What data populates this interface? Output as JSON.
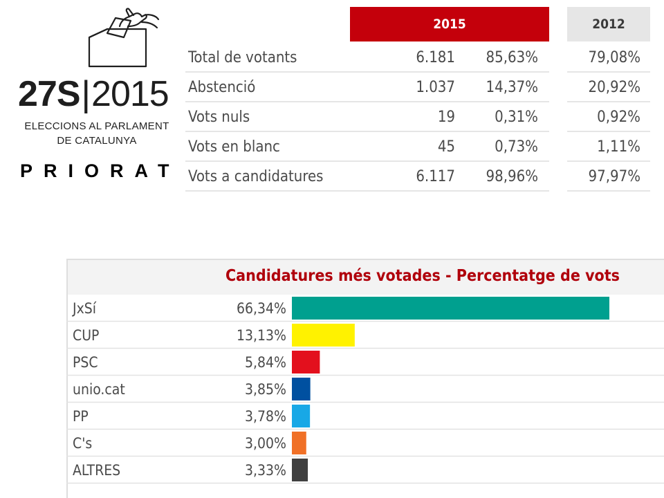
{
  "logo": {
    "date_code": "27S",
    "separator": "|",
    "year": "2015",
    "subtitle_line1": "ELECCIONS AL PARLAMENT",
    "subtitle_line2": "DE CATALUNYA",
    "icon": "ballot-box-hand-icon"
  },
  "region": "PRIORAT",
  "turnout": {
    "header_2015": "2015",
    "header_2012": "2012",
    "header_2015_color": "#c4000b",
    "header_2012_color": "#e6e6e6",
    "rows": [
      {
        "label": "Total de votants",
        "count": "6.181",
        "pct_2015": "85,63%",
        "pct_2012": "79,08%"
      },
      {
        "label": "Abstenció",
        "count": "1.037",
        "pct_2015": "14,37%",
        "pct_2012": "20,92%"
      },
      {
        "label": "Vots nuls",
        "count": "19",
        "pct_2015": "0,31%",
        "pct_2012": "0,92%"
      },
      {
        "label": "Vots en blanc",
        "count": "45",
        "pct_2015": "0,73%",
        "pct_2012": "1,11%"
      },
      {
        "label": "Vots a candidatures",
        "count": "6.117",
        "pct_2015": "98,96%",
        "pct_2012": "97,97%"
      }
    ]
  },
  "chart_data": {
    "type": "bar",
    "orientation": "horizontal",
    "title": "Candidatures més votades - Percentatge de vots",
    "categories": [
      "JxSí",
      "CUP",
      "PSC",
      "unio.cat",
      "PP",
      "C's",
      "ALTRES"
    ],
    "values": [
      66.34,
      13.13,
      5.84,
      3.85,
      3.78,
      3.0,
      3.33
    ],
    "value_labels": [
      "66,34%",
      "13,13%",
      "5,84%",
      "3,85%",
      "3,78%",
      "3,00%",
      "3,33%"
    ],
    "colors": [
      "#00a08f",
      "#fff200",
      "#e3101d",
      "#0050a0",
      "#18a8e6",
      "#f07026",
      "#404040"
    ],
    "xlim": [
      0,
      66.34
    ],
    "grid": false,
    "legend": "none"
  }
}
